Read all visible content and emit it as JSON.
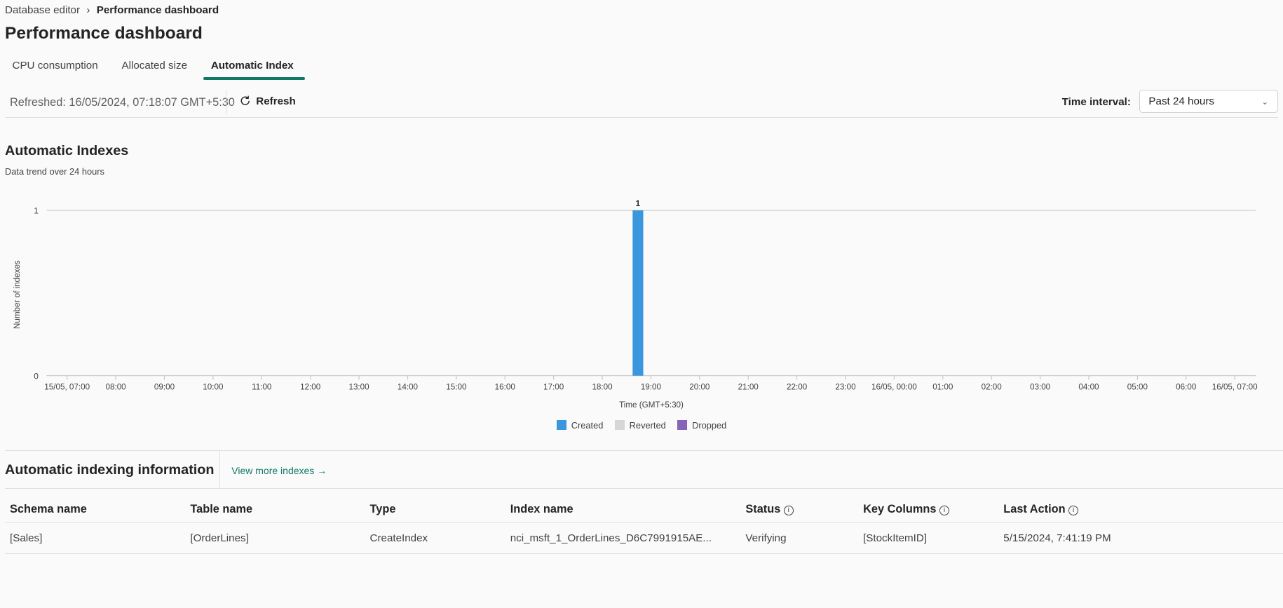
{
  "breadcrumb": {
    "items": [
      "Database editor",
      "Performance dashboard"
    ]
  },
  "page_title": "Performance dashboard",
  "tabs": [
    {
      "label": "CPU consumption",
      "active": false
    },
    {
      "label": "Allocated size",
      "active": false
    },
    {
      "label": "Automatic Index",
      "active": true
    }
  ],
  "toolbar": {
    "refreshed": "Refreshed: 16/05/2024, 07:18:07 GMT+5:30",
    "refresh_label": "Refresh",
    "time_interval_label": "Time interval:",
    "time_interval_value": "Past 24 hours"
  },
  "chart_section": {
    "title": "Automatic Indexes",
    "subtitle": "Data trend over 24 hours"
  },
  "chart_data": {
    "type": "bar",
    "xlabel": "Time (GMT+5:30)",
    "ylabel": "Number of indexes",
    "ylim": [
      0,
      1
    ],
    "yticks": [
      "0",
      "1"
    ],
    "xticks": [
      "15/05, 07:00",
      "08:00",
      "09:00",
      "10:00",
      "11:00",
      "12:00",
      "13:00",
      "14:00",
      "15:00",
      "16:00",
      "17:00",
      "18:00",
      "19:00",
      "20:00",
      "21:00",
      "22:00",
      "23:00",
      "16/05, 00:00",
      "01:00",
      "02:00",
      "03:00",
      "04:00",
      "05:00",
      "06:00",
      "16/05, 07:00"
    ],
    "xrange": [
      "15/05 07:00",
      "16/05 07:00"
    ],
    "legend_placement": "bottom",
    "grid": "horizontal",
    "series": [
      {
        "name": "Created",
        "color": "#3a96dd",
        "points": [
          {
            "x": "15/05 18:44",
            "y": 1,
            "label": "1"
          }
        ]
      },
      {
        "name": "Reverted",
        "color": "#d6d6d6",
        "points": []
      },
      {
        "name": "Dropped",
        "color": "#8764b8",
        "points": []
      }
    ]
  },
  "info_section": {
    "title": "Automatic indexing information",
    "view_more": "View more indexes →"
  },
  "table": {
    "columns": [
      {
        "label": "Schema name",
        "info": false
      },
      {
        "label": "Table name",
        "info": false
      },
      {
        "label": "Type",
        "info": false
      },
      {
        "label": "Index name",
        "info": false
      },
      {
        "label": "Status",
        "info": true
      },
      {
        "label": "Key Columns",
        "info": true
      },
      {
        "label": "Last Action",
        "info": true
      }
    ],
    "rows": [
      [
        "[Sales]",
        "[OrderLines]",
        "CreateIndex",
        "nci_msft_1_OrderLines_D6C7991915AE...",
        "Verifying",
        "[StockItemID]",
        "5/15/2024, 7:41:19 PM"
      ]
    ]
  },
  "colors": {
    "accent": "#117865",
    "created": "#3a96dd",
    "reverted": "#d6d6d6",
    "dropped": "#8764b8"
  }
}
